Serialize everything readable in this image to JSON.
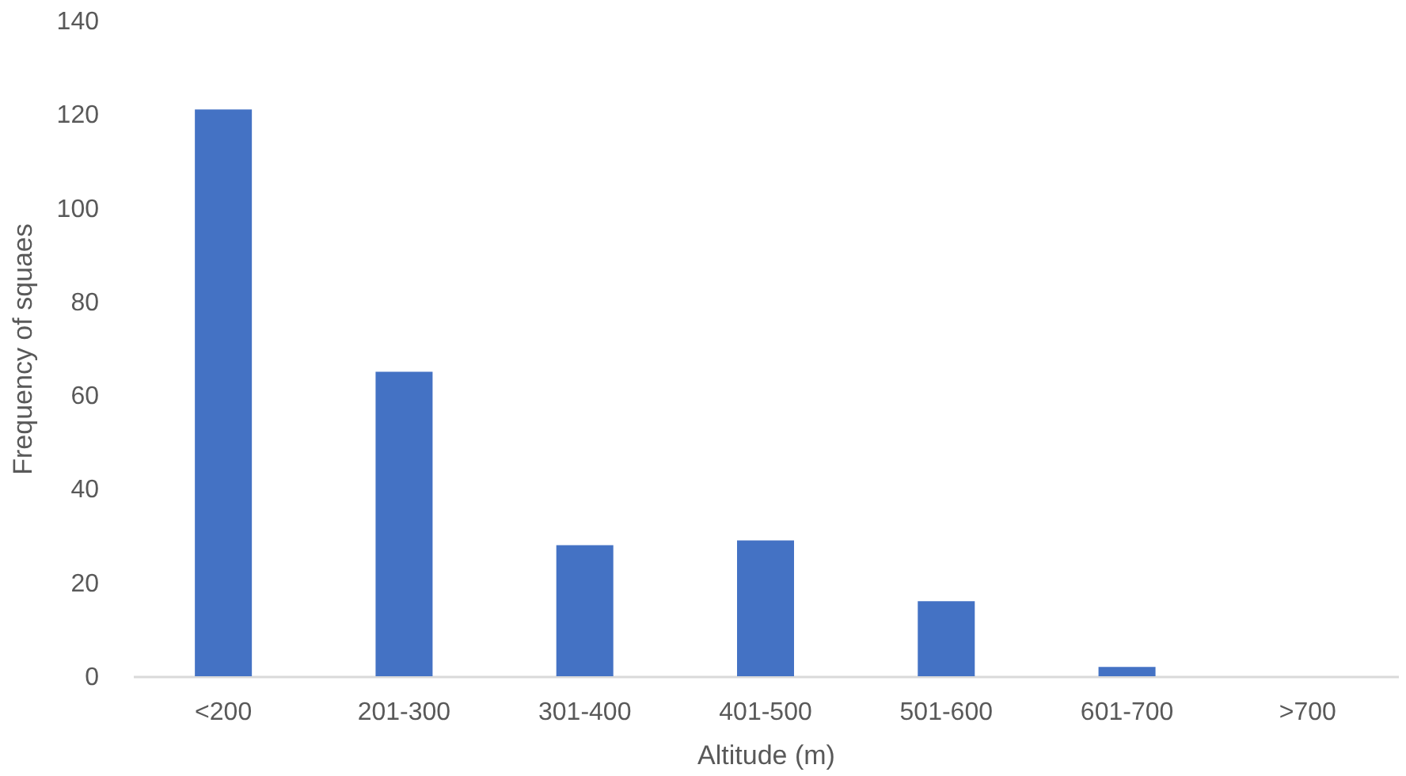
{
  "chart_data": {
    "type": "bar",
    "xlabel": "Altitude (m)",
    "ylabel": "Frequency of squaes",
    "categories": [
      "<200",
      "201-300",
      "301-400",
      "401-500",
      "501-600",
      "601-700",
      ">700"
    ],
    "values": [
      121,
      65,
      28,
      29,
      16,
      2,
      0
    ],
    "color": "#4472c4",
    "ylim": [
      0,
      140
    ],
    "yticks": [
      0,
      20,
      40,
      60,
      80,
      100,
      120,
      140
    ],
    "grid": false
  }
}
